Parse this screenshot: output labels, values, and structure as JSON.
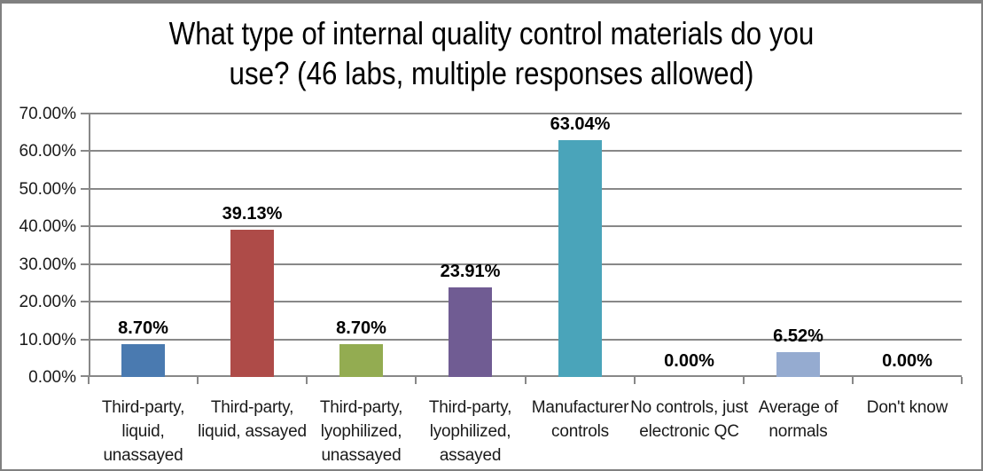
{
  "header": {
    "line1": "What type of internal quality control materials do you",
    "line2": "use? (46 labs, multiple responses allowed)"
  },
  "chart_data": {
    "type": "bar",
    "title": "What type of internal quality control materials do you use? (46 labs, multiple responses allowed)",
    "categories": [
      "Third-party, liquid, unassayed",
      "Third-party, liquid, assayed",
      "Third-party, lyophilized, unassayed",
      "Third-party, lyophilized, assayed",
      "Manufacturer controls",
      "No controls, just electronic QC",
      "Average of normals",
      "Don't know"
    ],
    "values": [
      8.7,
      39.13,
      8.7,
      23.91,
      63.04,
      0.0,
      6.52,
      0.0
    ],
    "data_labels": [
      "8.70%",
      "39.13%",
      "8.70%",
      "23.91%",
      "63.04%",
      "0.00%",
      "6.52%",
      "0.00%"
    ],
    "bar_colors": [
      "#4A7AB0",
      "#AE4B48",
      "#93AC51",
      "#705C93",
      "#4AA4BA",
      "#F79646",
      "#95ABD0",
      "#D99694"
    ],
    "ylim": [
      0,
      70
    ],
    "ytick_values": [
      0,
      10,
      20,
      30,
      40,
      50,
      60,
      70
    ],
    "ytick_labels": [
      "0.00%",
      "10.00%",
      "20.00%",
      "30.00%",
      "40.00%",
      "50.00%",
      "60.00%",
      "70.00%"
    ],
    "xlabel": "",
    "ylabel": "",
    "grid": true,
    "legend": false,
    "gridline_color": "#888888",
    "axis_color": "#888888",
    "label_color": "#000000"
  }
}
